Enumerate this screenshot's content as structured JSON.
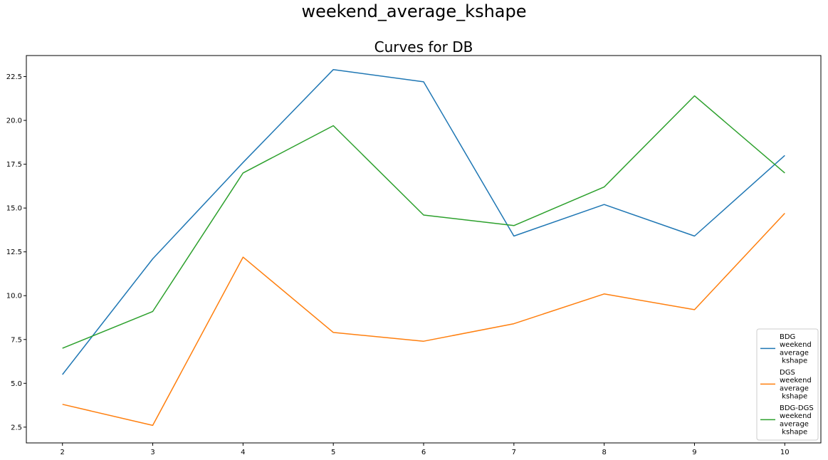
{
  "figure_title": "weekend_average_kshape",
  "chart_data": {
    "type": "line",
    "title": "Curves for DB",
    "xlabel": "",
    "ylabel": "",
    "x": [
      2,
      3,
      4,
      5,
      6,
      7,
      8,
      9,
      10
    ],
    "xlim": [
      1.6,
      10.4
    ],
    "ylim": [
      1.6,
      23.7
    ],
    "xticks": [
      "2",
      "3",
      "4",
      "5",
      "6",
      "7",
      "8",
      "9",
      "10"
    ],
    "yticks": [
      "2.5",
      "5.0",
      "7.5",
      "10.0",
      "12.5",
      "15.0",
      "17.5",
      "20.0",
      "22.5"
    ],
    "grid": false,
    "legend_position": "lower-right",
    "series": [
      {
        "name": "BDG weekend average kshape",
        "legend_lines": [
          "BDG",
          "weekend",
          "average",
          " kshape"
        ],
        "color": "#1f77b4",
        "values": [
          5.5,
          12.1,
          17.6,
          22.9,
          22.2,
          13.4,
          15.2,
          13.4,
          18.0
        ]
      },
      {
        "name": "DGS weekend average kshape",
        "legend_lines": [
          "DGS",
          "weekend",
          "average",
          " kshape"
        ],
        "color": "#ff7f0e",
        "values": [
          3.8,
          2.6,
          12.2,
          7.9,
          7.4,
          8.4,
          10.1,
          9.2,
          14.7
        ]
      },
      {
        "name": "BDG-DGS weekend average kshape",
        "legend_lines": [
          "BDG-DGS",
          "weekend",
          "average",
          " kshape"
        ],
        "color": "#2ca02c",
        "values": [
          7.0,
          9.1,
          17.0,
          19.7,
          14.6,
          14.0,
          16.2,
          21.4,
          17.0
        ]
      }
    ]
  }
}
